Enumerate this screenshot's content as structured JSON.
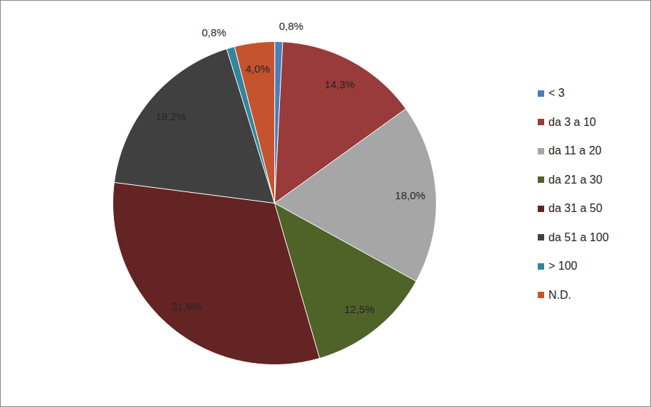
{
  "chart_data": {
    "type": "pie",
    "categories": [
      "< 3",
      "da 3 a 10",
      "da 11 a 20",
      "da 21 a 30",
      "da 31 a 50",
      "da 51 a 100",
      "> 100",
      "N.D."
    ],
    "values": [
      0.8,
      14.3,
      18.0,
      12.5,
      31.6,
      18.2,
      0.8,
      4.0
    ],
    "value_labels": [
      "0,8%",
      "14,3%",
      "18,0%",
      "12,5%",
      "31,6%",
      "18,2%",
      "0,8%",
      "4,0%"
    ],
    "colors": [
      "#4a7ebb",
      "#983b3a",
      "#a6a6a6",
      "#4f6228",
      "#632423",
      "#404040",
      "#31859c",
      "#c4532e"
    ],
    "data_labels": true,
    "legend": "right"
  }
}
